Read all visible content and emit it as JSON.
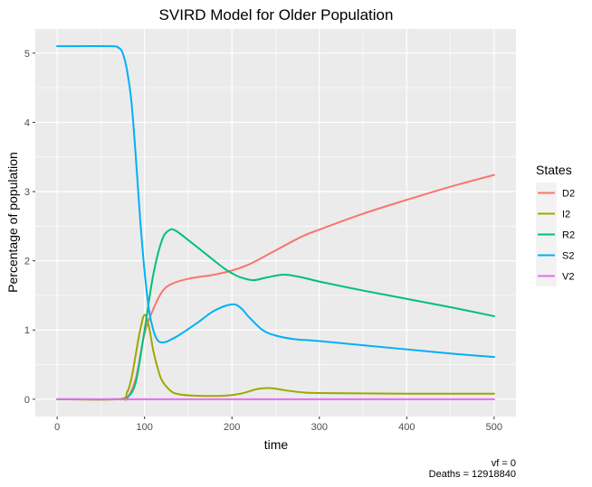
{
  "chart_data": {
    "type": "line",
    "title": "SVIRD Model for Older Population",
    "xlabel": "time",
    "ylabel": "Percentage of population",
    "xlim": [
      -25,
      525
    ],
    "ylim": [
      -0.25,
      5.35
    ],
    "x_ticks": [
      0,
      100,
      200,
      300,
      400,
      500
    ],
    "x_tick_labels": [
      "0",
      "100",
      "200",
      "300",
      "400",
      "500"
    ],
    "y_ticks": [
      0,
      1,
      2,
      3,
      4,
      5
    ],
    "y_tick_labels": [
      "0",
      "1",
      "2",
      "3",
      "4",
      "5"
    ],
    "grid": true,
    "legend_title": "States",
    "legend_position": "right",
    "caption_lines": [
      "vf = 0",
      "Deaths = 12918840"
    ],
    "series": [
      {
        "name": "D2",
        "color": "#F8766D",
        "x": [
          0,
          70,
          80,
          90,
          100,
          110,
          120,
          130,
          150,
          180,
          200,
          220,
          250,
          280,
          300,
          350,
          400,
          450,
          500
        ],
        "y": [
          0,
          0,
          0.02,
          0.3,
          0.95,
          1.3,
          1.55,
          1.66,
          1.74,
          1.8,
          1.86,
          1.95,
          2.15,
          2.35,
          2.45,
          2.68,
          2.88,
          3.07,
          3.24
        ]
      },
      {
        "name": "I2",
        "color": "#A3A500",
        "x": [
          0,
          70,
          80,
          85,
          90,
          95,
          100,
          105,
          110,
          115,
          120,
          130,
          140,
          160,
          190,
          210,
          230,
          245,
          260,
          280,
          300,
          400,
          500
        ],
        "y": [
          0,
          0,
          0.1,
          0.3,
          0.65,
          1.0,
          1.22,
          1.05,
          0.7,
          0.45,
          0.27,
          0.12,
          0.07,
          0.05,
          0.05,
          0.08,
          0.15,
          0.16,
          0.13,
          0.1,
          0.09,
          0.08,
          0.08
        ]
      },
      {
        "name": "R2",
        "color": "#00BF7D",
        "x": [
          0,
          70,
          80,
          90,
          100,
          110,
          120,
          128,
          135,
          150,
          170,
          190,
          200,
          210,
          225,
          240,
          260,
          280,
          300,
          350,
          400,
          450,
          500
        ],
        "y": [
          0,
          0,
          0.02,
          0.25,
          1.0,
          1.8,
          2.3,
          2.44,
          2.44,
          2.3,
          2.1,
          1.9,
          1.82,
          1.76,
          1.72,
          1.76,
          1.8,
          1.76,
          1.7,
          1.57,
          1.45,
          1.33,
          1.2
        ]
      },
      {
        "name": "S2",
        "color": "#00B0F6",
        "x": [
          0,
          60,
          70,
          75,
          80,
          85,
          90,
          95,
          100,
          105,
          110,
          115,
          120,
          125,
          130,
          140,
          160,
          180,
          200,
          210,
          220,
          235,
          250,
          270,
          300,
          350,
          400,
          450,
          500
        ],
        "y": [
          5.1,
          5.1,
          5.08,
          5.0,
          4.75,
          4.3,
          3.5,
          2.6,
          1.85,
          1.3,
          1.0,
          0.85,
          0.82,
          0.83,
          0.86,
          0.93,
          1.1,
          1.28,
          1.37,
          1.32,
          1.18,
          1.0,
          0.92,
          0.87,
          0.84,
          0.78,
          0.72,
          0.66,
          0.61
        ]
      },
      {
        "name": "V2",
        "color": "#E76BF3",
        "x": [
          0,
          500
        ],
        "y": [
          0,
          0
        ]
      }
    ]
  }
}
